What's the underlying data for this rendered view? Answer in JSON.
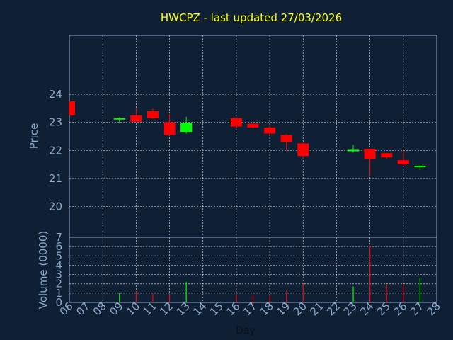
{
  "chart_data": {
    "type": "candlestick",
    "title": "HWCPZ - last updated 27/03/2026",
    "xlabel": "Day",
    "ylabel": "Price",
    "volume_label": "Volume (0000)",
    "x_ticks": [
      "06",
      "07",
      "08",
      "09",
      "10",
      "11",
      "12",
      "13",
      "14",
      "15",
      "16",
      "17",
      "18",
      "19",
      "20",
      "21",
      "22",
      "23",
      "24",
      "25",
      "26",
      "27",
      "28"
    ],
    "price_ticks": [
      20,
      21,
      22,
      23,
      24
    ],
    "price_range": [
      18.9,
      26.1
    ],
    "volume_ticks": [
      0,
      1,
      2,
      3,
      4,
      5,
      6,
      7
    ],
    "volume_range": [
      0,
      7
    ],
    "grid": true,
    "colors": {
      "up": "#00ff00",
      "down": "#ff0000",
      "background": "#0f2035",
      "axis": "#8aa9cc",
      "title": "#ffff00",
      "grid": "#ffffff"
    },
    "candles": [
      {
        "day": "06",
        "open": 23.75,
        "high": 23.75,
        "low": 23.25,
        "close": 23.25,
        "volume": 0
      },
      {
        "day": "09",
        "open": 23.12,
        "high": 23.18,
        "low": 22.98,
        "close": 23.15,
        "volume": 1.0
      },
      {
        "day": "10",
        "open": 23.25,
        "high": 23.5,
        "low": 23.02,
        "close": 23.02,
        "volume": 1.2
      },
      {
        "day": "11",
        "open": 23.4,
        "high": 23.5,
        "low": 23.12,
        "close": 23.15,
        "volume": 1.0
      },
      {
        "day": "12",
        "open": 23.0,
        "high": 23.3,
        "low": 22.52,
        "close": 22.55,
        "volume": 0.9
      },
      {
        "day": "13",
        "open": 22.65,
        "high": 23.2,
        "low": 22.6,
        "close": 22.98,
        "volume": 2.2
      },
      {
        "day": "16",
        "open": 23.15,
        "high": 23.18,
        "low": 22.8,
        "close": 22.85,
        "volume": 0.9
      },
      {
        "day": "17",
        "open": 22.95,
        "high": 22.98,
        "low": 22.78,
        "close": 22.82,
        "volume": 0.8
      },
      {
        "day": "18",
        "open": 22.82,
        "high": 22.88,
        "low": 22.55,
        "close": 22.6,
        "volume": 0.8
      },
      {
        "day": "19",
        "open": 22.55,
        "high": 22.58,
        "low": 22.0,
        "close": 22.3,
        "volume": 1.3
      },
      {
        "day": "20",
        "open": 22.25,
        "high": 22.28,
        "low": 21.7,
        "close": 21.8,
        "volume": 2.0
      },
      {
        "day": "23",
        "open": 21.98,
        "high": 22.2,
        "low": 21.92,
        "close": 22.02,
        "volume": 1.7
      },
      {
        "day": "24",
        "open": 22.05,
        "high": 22.05,
        "low": 21.1,
        "close": 21.7,
        "volume": 6.1
      },
      {
        "day": "25",
        "open": 21.9,
        "high": 21.92,
        "low": 21.7,
        "close": 21.75,
        "volume": 1.9
      },
      {
        "day": "26",
        "open": 21.65,
        "high": 22.0,
        "low": 21.48,
        "close": 21.5,
        "volume": 1.9
      },
      {
        "day": "27",
        "open": 21.4,
        "high": 21.5,
        "low": 21.3,
        "close": 21.45,
        "volume": 2.6
      }
    ]
  }
}
